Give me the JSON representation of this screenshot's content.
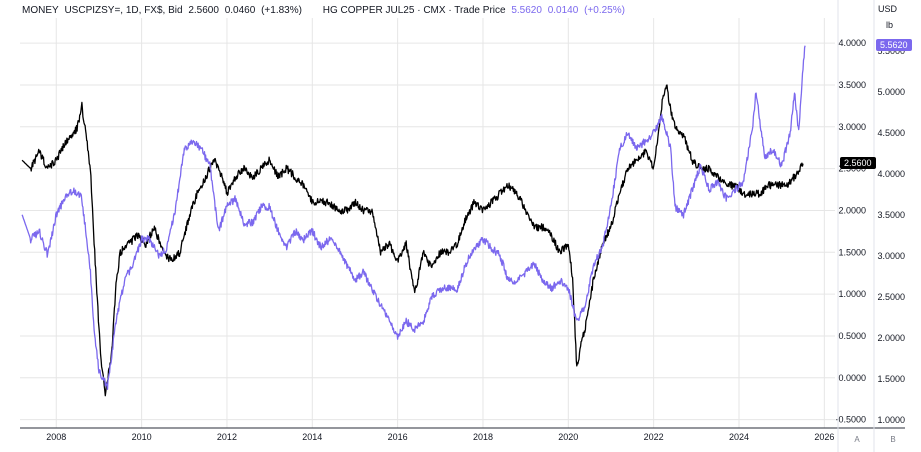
{
  "legend": {
    "series1_prefix": "MONEY",
    "series1_symbol": "USCPIZSY=, 1D, FX$, Bid",
    "series1_price": "2.5600",
    "series1_change": "0.0460",
    "series1_pct": "(+1.83%)",
    "series2_symbol": "HG COPPER JUL25 · CMX · Trade Price",
    "series2_price": "5.5620",
    "series2_change": "0.0140",
    "series2_pct": "(+0.25%)"
  },
  "axis_units": {
    "right1": "USD",
    "right2": "lb"
  },
  "badges": {
    "series1": "2.5600",
    "series2": "5.5620"
  },
  "buttons": {
    "a": "A",
    "b": "B"
  },
  "colors": {
    "series1": "#000000",
    "series2": "#7b68ee",
    "grid": "#e6e6e6"
  },
  "chart_data": {
    "type": "line",
    "xlabel": "",
    "x_ticks": [
      "2008",
      "2010",
      "2012",
      "2014",
      "2016",
      "2018",
      "2020",
      "2022",
      "2024",
      "2026"
    ],
    "left_axis": {
      "ticks": [
        "4.0000",
        "3.5000",
        "3.0000",
        "2.5000",
        "2.0000",
        "1.5000",
        "1.0000",
        "0.5000",
        "0.0000",
        "-0.5000"
      ],
      "ylim": [
        -0.6,
        4.3
      ]
    },
    "right_axis": {
      "ticks": [
        "5.5000",
        "5.0000",
        "4.5000",
        "4.0000",
        "3.5000",
        "3.0000",
        "2.5000",
        "2.0000",
        "1.5000",
        "1.0000"
      ],
      "ylim": [
        0.9,
        5.9
      ]
    },
    "grid": true,
    "series": [
      {
        "name": "MONEY USCPIZSY=",
        "axis": "left",
        "color": "#000000",
        "points": [
          [
            2007.2,
            2.6
          ],
          [
            2007.4,
            2.5
          ],
          [
            2007.6,
            2.7
          ],
          [
            2007.8,
            2.5
          ],
          [
            2008.0,
            2.6
          ],
          [
            2008.2,
            2.8
          ],
          [
            2008.4,
            2.9
          ],
          [
            2008.5,
            3.0
          ],
          [
            2008.6,
            3.25
          ],
          [
            2008.7,
            2.9
          ],
          [
            2008.8,
            2.5
          ],
          [
            2008.9,
            1.5
          ],
          [
            2009.0,
            0.6
          ],
          [
            2009.05,
            0.2
          ],
          [
            2009.15,
            -0.2
          ],
          [
            2009.3,
            0.3
          ],
          [
            2009.4,
            1.1
          ],
          [
            2009.5,
            1.5
          ],
          [
            2009.7,
            1.6
          ],
          [
            2009.9,
            1.7
          ],
          [
            2010.1,
            1.6
          ],
          [
            2010.3,
            1.8
          ],
          [
            2010.5,
            1.5
          ],
          [
            2010.7,
            1.4
          ],
          [
            2010.9,
            1.5
          ],
          [
            2011.1,
            1.9
          ],
          [
            2011.3,
            2.2
          ],
          [
            2011.5,
            2.4
          ],
          [
            2011.7,
            2.6
          ],
          [
            2011.9,
            2.4
          ],
          [
            2012.0,
            2.2
          ],
          [
            2012.2,
            2.4
          ],
          [
            2012.4,
            2.5
          ],
          [
            2012.6,
            2.4
          ],
          [
            2012.8,
            2.5
          ],
          [
            2013.0,
            2.6
          ],
          [
            2013.2,
            2.4
          ],
          [
            2013.4,
            2.5
          ],
          [
            2013.6,
            2.4
          ],
          [
            2013.8,
            2.3
          ],
          [
            2014.0,
            2.1
          ],
          [
            2014.2,
            2.1
          ],
          [
            2014.4,
            2.1
          ],
          [
            2014.6,
            2.0
          ],
          [
            2014.8,
            2.0
          ],
          [
            2015.0,
            2.1
          ],
          [
            2015.2,
            2.0
          ],
          [
            2015.4,
            2.0
          ],
          [
            2015.6,
            1.5
          ],
          [
            2015.8,
            1.6
          ],
          [
            2016.0,
            1.4
          ],
          [
            2016.2,
            1.6
          ],
          [
            2016.4,
            1.0
          ],
          [
            2016.6,
            1.5
          ],
          [
            2016.8,
            1.3
          ],
          [
            2017.0,
            1.5
          ],
          [
            2017.2,
            1.5
          ],
          [
            2017.4,
            1.6
          ],
          [
            2017.6,
            1.9
          ],
          [
            2017.8,
            2.1
          ],
          [
            2018.0,
            2.0
          ],
          [
            2018.2,
            2.1
          ],
          [
            2018.4,
            2.2
          ],
          [
            2018.6,
            2.3
          ],
          [
            2018.8,
            2.2
          ],
          [
            2019.0,
            2.0
          ],
          [
            2019.2,
            1.8
          ],
          [
            2019.4,
            1.8
          ],
          [
            2019.6,
            1.7
          ],
          [
            2019.8,
            1.5
          ],
          [
            2020.0,
            1.6
          ],
          [
            2020.1,
            1.2
          ],
          [
            2020.2,
            0.1
          ],
          [
            2020.3,
            0.4
          ],
          [
            2020.4,
            0.6
          ],
          [
            2020.6,
            1.2
          ],
          [
            2020.8,
            1.6
          ],
          [
            2021.0,
            1.8
          ],
          [
            2021.2,
            2.2
          ],
          [
            2021.4,
            2.5
          ],
          [
            2021.6,
            2.6
          ],
          [
            2021.8,
            2.7
          ],
          [
            2022.0,
            2.5
          ],
          [
            2022.1,
            2.9
          ],
          [
            2022.2,
            3.3
          ],
          [
            2022.3,
            3.5
          ],
          [
            2022.4,
            3.2
          ],
          [
            2022.5,
            3.0
          ],
          [
            2022.7,
            2.9
          ],
          [
            2022.9,
            2.6
          ],
          [
            2023.1,
            2.5
          ],
          [
            2023.3,
            2.5
          ],
          [
            2023.5,
            2.4
          ],
          [
            2023.7,
            2.3
          ],
          [
            2023.9,
            2.3
          ],
          [
            2024.1,
            2.2
          ],
          [
            2024.3,
            2.2
          ],
          [
            2024.5,
            2.2
          ],
          [
            2024.7,
            2.3
          ],
          [
            2024.9,
            2.3
          ],
          [
            2025.1,
            2.3
          ],
          [
            2025.3,
            2.4
          ],
          [
            2025.5,
            2.56
          ]
        ]
      },
      {
        "name": "HG COPPER JUL25",
        "axis": "right",
        "color": "#7b68ee",
        "points": [
          [
            2007.2,
            3.5
          ],
          [
            2007.4,
            3.2
          ],
          [
            2007.6,
            3.3
          ],
          [
            2007.8,
            3.0
          ],
          [
            2008.0,
            3.5
          ],
          [
            2008.2,
            3.7
          ],
          [
            2008.4,
            3.8
          ],
          [
            2008.6,
            3.7
          ],
          [
            2008.8,
            2.8
          ],
          [
            2008.9,
            2.0
          ],
          [
            2009.0,
            1.6
          ],
          [
            2009.2,
            1.4
          ],
          [
            2009.4,
            2.2
          ],
          [
            2009.6,
            2.7
          ],
          [
            2009.8,
            2.9
          ],
          [
            2010.0,
            3.2
          ],
          [
            2010.2,
            3.2
          ],
          [
            2010.4,
            3.0
          ],
          [
            2010.6,
            3.1
          ],
          [
            2010.8,
            3.6
          ],
          [
            2011.0,
            4.3
          ],
          [
            2011.2,
            4.4
          ],
          [
            2011.4,
            4.3
          ],
          [
            2011.6,
            4.1
          ],
          [
            2011.8,
            3.3
          ],
          [
            2012.0,
            3.6
          ],
          [
            2012.2,
            3.7
          ],
          [
            2012.4,
            3.4
          ],
          [
            2012.6,
            3.4
          ],
          [
            2012.8,
            3.6
          ],
          [
            2013.0,
            3.6
          ],
          [
            2013.2,
            3.3
          ],
          [
            2013.4,
            3.1
          ],
          [
            2013.6,
            3.3
          ],
          [
            2013.8,
            3.2
          ],
          [
            2014.0,
            3.3
          ],
          [
            2014.2,
            3.1
          ],
          [
            2014.4,
            3.2
          ],
          [
            2014.6,
            3.1
          ],
          [
            2014.8,
            2.9
          ],
          [
            2015.0,
            2.7
          ],
          [
            2015.2,
            2.8
          ],
          [
            2015.4,
            2.6
          ],
          [
            2015.6,
            2.4
          ],
          [
            2015.8,
            2.2
          ],
          [
            2016.0,
            2.0
          ],
          [
            2016.2,
            2.2
          ],
          [
            2016.4,
            2.1
          ],
          [
            2016.6,
            2.2
          ],
          [
            2016.8,
            2.5
          ],
          [
            2017.0,
            2.6
          ],
          [
            2017.2,
            2.6
          ],
          [
            2017.4,
            2.6
          ],
          [
            2017.6,
            2.9
          ],
          [
            2017.8,
            3.1
          ],
          [
            2018.0,
            3.2
          ],
          [
            2018.2,
            3.1
          ],
          [
            2018.4,
            3.0
          ],
          [
            2018.6,
            2.7
          ],
          [
            2018.8,
            2.7
          ],
          [
            2019.0,
            2.8
          ],
          [
            2019.2,
            2.9
          ],
          [
            2019.4,
            2.7
          ],
          [
            2019.6,
            2.6
          ],
          [
            2019.8,
            2.7
          ],
          [
            2020.0,
            2.6
          ],
          [
            2020.2,
            2.2
          ],
          [
            2020.4,
            2.4
          ],
          [
            2020.6,
            2.9
          ],
          [
            2020.8,
            3.1
          ],
          [
            2021.0,
            3.6
          ],
          [
            2021.2,
            4.3
          ],
          [
            2021.4,
            4.5
          ],
          [
            2021.6,
            4.3
          ],
          [
            2021.8,
            4.4
          ],
          [
            2022.0,
            4.5
          ],
          [
            2022.2,
            4.7
          ],
          [
            2022.4,
            4.3
          ],
          [
            2022.5,
            3.6
          ],
          [
            2022.7,
            3.5
          ],
          [
            2022.9,
            3.8
          ],
          [
            2023.1,
            4.1
          ],
          [
            2023.3,
            3.8
          ],
          [
            2023.5,
            3.9
          ],
          [
            2023.7,
            3.7
          ],
          [
            2023.9,
            3.8
          ],
          [
            2024.1,
            3.9
          ],
          [
            2024.3,
            4.5
          ],
          [
            2024.4,
            5.0
          ],
          [
            2024.6,
            4.2
          ],
          [
            2024.8,
            4.3
          ],
          [
            2025.0,
            4.1
          ],
          [
            2025.2,
            4.5
          ],
          [
            2025.3,
            5.0
          ],
          [
            2025.4,
            4.5
          ],
          [
            2025.5,
            5.3
          ],
          [
            2025.55,
            5.562
          ]
        ]
      }
    ]
  }
}
